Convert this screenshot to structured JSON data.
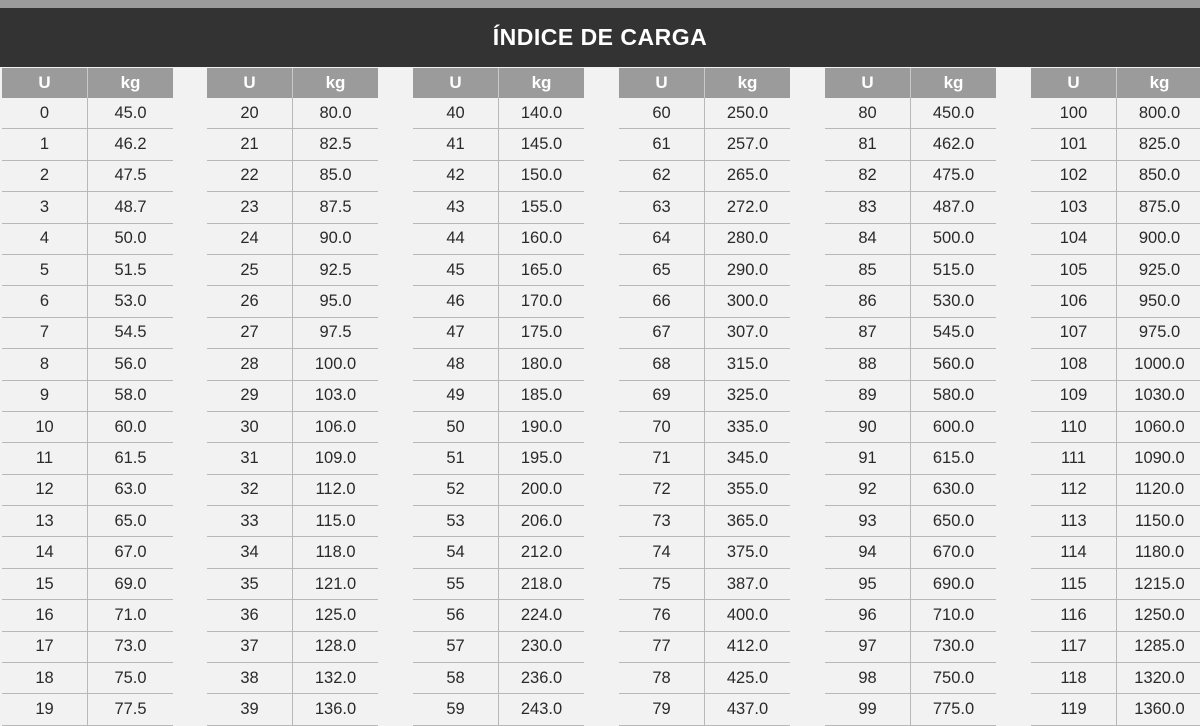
{
  "title": "ÍNDICE DE CARGA",
  "headers": {
    "u": "U",
    "kg": "kg"
  },
  "groups": [
    [
      [
        "0",
        "45.0"
      ],
      [
        "1",
        "46.2"
      ],
      [
        "2",
        "47.5"
      ],
      [
        "3",
        "48.7"
      ],
      [
        "4",
        "50.0"
      ],
      [
        "5",
        "51.5"
      ],
      [
        "6",
        "53.0"
      ],
      [
        "7",
        "54.5"
      ],
      [
        "8",
        "56.0"
      ],
      [
        "9",
        "58.0"
      ],
      [
        "10",
        "60.0"
      ],
      [
        "11",
        "61.5"
      ],
      [
        "12",
        "63.0"
      ],
      [
        "13",
        "65.0"
      ],
      [
        "14",
        "67.0"
      ],
      [
        "15",
        "69.0"
      ],
      [
        "16",
        "71.0"
      ],
      [
        "17",
        "73.0"
      ],
      [
        "18",
        "75.0"
      ],
      [
        "19",
        "77.5"
      ]
    ],
    [
      [
        "20",
        "80.0"
      ],
      [
        "21",
        "82.5"
      ],
      [
        "22",
        "85.0"
      ],
      [
        "23",
        "87.5"
      ],
      [
        "24",
        "90.0"
      ],
      [
        "25",
        "92.5"
      ],
      [
        "26",
        "95.0"
      ],
      [
        "27",
        "97.5"
      ],
      [
        "28",
        "100.0"
      ],
      [
        "29",
        "103.0"
      ],
      [
        "30",
        "106.0"
      ],
      [
        "31",
        "109.0"
      ],
      [
        "32",
        "112.0"
      ],
      [
        "33",
        "115.0"
      ],
      [
        "34",
        "118.0"
      ],
      [
        "35",
        "121.0"
      ],
      [
        "36",
        "125.0"
      ],
      [
        "37",
        "128.0"
      ],
      [
        "38",
        "132.0"
      ],
      [
        "39",
        "136.0"
      ]
    ],
    [
      [
        "40",
        "140.0"
      ],
      [
        "41",
        "145.0"
      ],
      [
        "42",
        "150.0"
      ],
      [
        "43",
        "155.0"
      ],
      [
        "44",
        "160.0"
      ],
      [
        "45",
        "165.0"
      ],
      [
        "46",
        "170.0"
      ],
      [
        "47",
        "175.0"
      ],
      [
        "48",
        "180.0"
      ],
      [
        "49",
        "185.0"
      ],
      [
        "50",
        "190.0"
      ],
      [
        "51",
        "195.0"
      ],
      [
        "52",
        "200.0"
      ],
      [
        "53",
        "206.0"
      ],
      [
        "54",
        "212.0"
      ],
      [
        "55",
        "218.0"
      ],
      [
        "56",
        "224.0"
      ],
      [
        "57",
        "230.0"
      ],
      [
        "58",
        "236.0"
      ],
      [
        "59",
        "243.0"
      ]
    ],
    [
      [
        "60",
        "250.0"
      ],
      [
        "61",
        "257.0"
      ],
      [
        "62",
        "265.0"
      ],
      [
        "63",
        "272.0"
      ],
      [
        "64",
        "280.0"
      ],
      [
        "65",
        "290.0"
      ],
      [
        "66",
        "300.0"
      ],
      [
        "67",
        "307.0"
      ],
      [
        "68",
        "315.0"
      ],
      [
        "69",
        "325.0"
      ],
      [
        "70",
        "335.0"
      ],
      [
        "71",
        "345.0"
      ],
      [
        "72",
        "355.0"
      ],
      [
        "73",
        "365.0"
      ],
      [
        "74",
        "375.0"
      ],
      [
        "75",
        "387.0"
      ],
      [
        "76",
        "400.0"
      ],
      [
        "77",
        "412.0"
      ],
      [
        "78",
        "425.0"
      ],
      [
        "79",
        "437.0"
      ]
    ],
    [
      [
        "80",
        "450.0"
      ],
      [
        "81",
        "462.0"
      ],
      [
        "82",
        "475.0"
      ],
      [
        "83",
        "487.0"
      ],
      [
        "84",
        "500.0"
      ],
      [
        "85",
        "515.0"
      ],
      [
        "86",
        "530.0"
      ],
      [
        "87",
        "545.0"
      ],
      [
        "88",
        "560.0"
      ],
      [
        "89",
        "580.0"
      ],
      [
        "90",
        "600.0"
      ],
      [
        "91",
        "615.0"
      ],
      [
        "92",
        "630.0"
      ],
      [
        "93",
        "650.0"
      ],
      [
        "94",
        "670.0"
      ],
      [
        "95",
        "690.0"
      ],
      [
        "96",
        "710.0"
      ],
      [
        "97",
        "730.0"
      ],
      [
        "98",
        "750.0"
      ],
      [
        "99",
        "775.0"
      ]
    ],
    [
      [
        "100",
        "800.0"
      ],
      [
        "101",
        "825.0"
      ],
      [
        "102",
        "850.0"
      ],
      [
        "103",
        "875.0"
      ],
      [
        "104",
        "900.0"
      ],
      [
        "105",
        "925.0"
      ],
      [
        "106",
        "950.0"
      ],
      [
        "107",
        "975.0"
      ],
      [
        "108",
        "1000.0"
      ],
      [
        "109",
        "1030.0"
      ],
      [
        "110",
        "1060.0"
      ],
      [
        "111",
        "1090.0"
      ],
      [
        "112",
        "1120.0"
      ],
      [
        "113",
        "1150.0"
      ],
      [
        "114",
        "1180.0"
      ],
      [
        "115",
        "1215.0"
      ],
      [
        "116",
        "1250.0"
      ],
      [
        "117",
        "1285.0"
      ],
      [
        "118",
        "1320.0"
      ],
      [
        "119",
        "1360.0"
      ]
    ]
  ]
}
